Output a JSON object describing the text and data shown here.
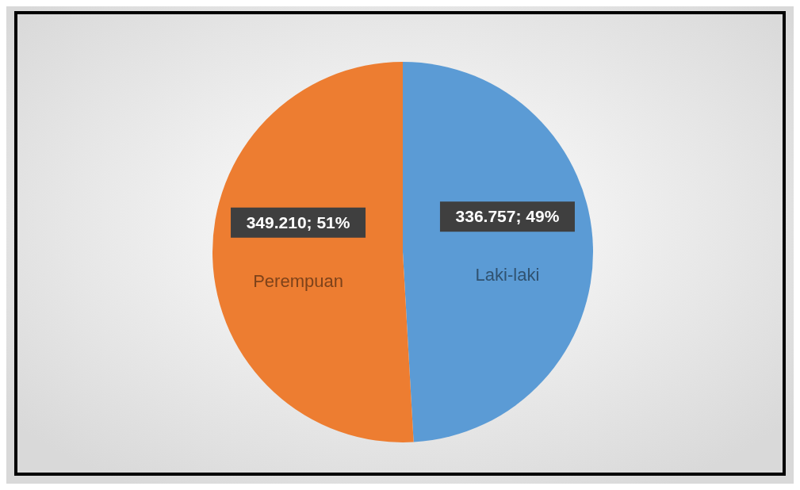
{
  "chart_data": {
    "type": "pie",
    "categories": [
      "Laki-laki",
      "Perempuan"
    ],
    "values": [
      336757,
      349210
    ],
    "colors": [
      "#5b9bd5",
      "#ed7d31"
    ],
    "value_labels": [
      "336.757; 49%",
      "349.210; 51%"
    ]
  }
}
